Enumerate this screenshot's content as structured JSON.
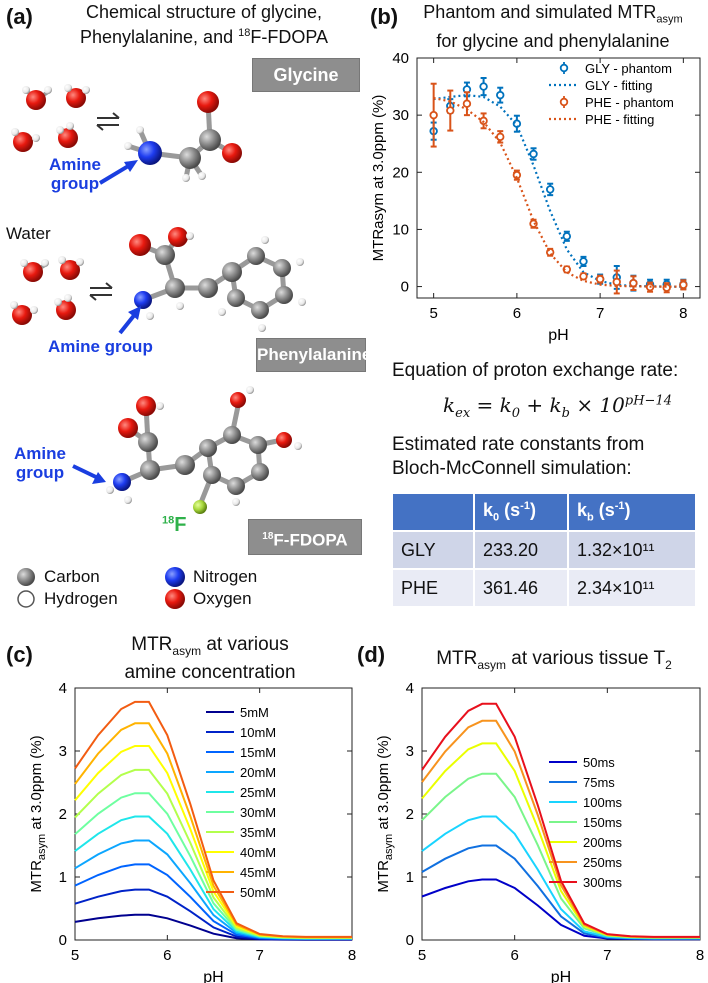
{
  "panel_a": {
    "label": "(a)",
    "title_line1": "Chemical structure of glycine,",
    "title_line2_pre": "Phenylalanine, and ",
    "title_line2_sup": "18",
    "title_line2_post": "F-FDOPA",
    "glycine_label": "Glycine",
    "phenylalanine_label": "Phenylalanine",
    "fdopa_label_sup": "18",
    "fdopa_label_post": "F-FDOPA",
    "amine_group_1_line1": "Amine",
    "amine_group_1_line2": "group",
    "amine_group_2": "Amine group",
    "amine_group_3_line1": "Amine",
    "amine_group_3_line2": "group",
    "water_label": "Water",
    "f18_sup": "18",
    "f18_label": "F",
    "legend": {
      "carbon": "Carbon",
      "hydrogen": "Hydrogen",
      "nitrogen": "Nitrogen",
      "oxygen": "Oxygen"
    },
    "colors": {
      "carbon": "#8a8a8a",
      "hydrogen": "#ffffff",
      "nitrogen": "#1e3cf0",
      "oxygen": "#e8190f",
      "fluorine": "#a6d63a"
    }
  },
  "panel_b": {
    "label": "(b)",
    "title_line1": "Phantom and simulated MTR",
    "title_line1_sub": "asym",
    "title_line2": "for glycine and phenylalanine",
    "equation_title": "Equation of proton exchange rate:",
    "equation": "k_ex = k_0 + k_b × 10^(pH−14)",
    "estimated_line1": "Estimated rate constants from",
    "estimated_line2": "Bloch-McConnell simulation:",
    "table": {
      "header_k0": "k0 (s-1)",
      "header_kb": "kb (s-1)",
      "rows": [
        {
          "name": "GLY",
          "k0": "233.20",
          "kb": "1.32×10¹¹"
        },
        {
          "name": "PHE",
          "k0": "361.46",
          "kb": "2.34×10¹¹"
        }
      ]
    }
  },
  "panel_c": {
    "label": "(c)",
    "title_line1_pre": "MTR",
    "title_line1_sub": "asym",
    "title_line1_post": " at various",
    "title_line2": "amine concentration"
  },
  "panel_d": {
    "label": "(d)",
    "title_pre": "MTR",
    "title_sub": "asym",
    "title_post": " at various tissue T",
    "title_sub2": "2"
  },
  "chart_data": [
    {
      "id": "b",
      "type": "scatter",
      "xlabel": "pH",
      "ylabel": "MTRasym at 3.0ppm (%)",
      "xlim": [
        4.8,
        8.2
      ],
      "ylim": [
        -2,
        40
      ],
      "xticks": [
        5,
        6,
        7,
        8
      ],
      "yticks": [
        0,
        10,
        20,
        30,
        40
      ],
      "series": [
        {
          "name": "GLY - phantom",
          "kind": "errorbar",
          "color": "#0072bd",
          "x": [
            5.0,
            5.2,
            5.4,
            5.6,
            5.8,
            6.0,
            6.2,
            6.4,
            6.6,
            6.8,
            7.0,
            7.2,
            7.4,
            7.6,
            7.8,
            8.0
          ],
          "y": [
            27.2,
            31.6,
            34.5,
            35.0,
            33.5,
            28.5,
            23.2,
            17.0,
            8.8,
            4.4,
            1.3,
            1.6,
            0.6,
            0.4,
            0.4,
            0.4
          ],
          "err": [
            1.5,
            1.2,
            1.2,
            1.5,
            1.3,
            1.4,
            1.0,
            1.0,
            0.8,
            0.8,
            0.8,
            2.0,
            1.3,
            0.8,
            0.8,
            0.8
          ]
        },
        {
          "name": "GLY - fitting",
          "kind": "dotted",
          "color": "#0072bd",
          "x": [
            5.0,
            5.2,
            5.4,
            5.6,
            5.8,
            6.0,
            6.2,
            6.4,
            6.6,
            6.8,
            7.0,
            7.2,
            7.4,
            7.6,
            7.8,
            8.0
          ],
          "y": [
            32.8,
            33.2,
            33.5,
            33.2,
            31.5,
            28.2,
            21.2,
            13.2,
            6.5,
            2.5,
            1.0,
            0.3,
            0.1,
            0.05,
            0,
            0
          ]
        },
        {
          "name": "PHE - phantom",
          "kind": "errorbar",
          "color": "#d95319",
          "x": [
            5.0,
            5.2,
            5.4,
            5.6,
            5.8,
            6.0,
            6.2,
            6.4,
            6.6,
            6.8,
            7.0,
            7.2,
            7.4,
            7.6,
            7.8,
            8.0
          ],
          "y": [
            30.0,
            30.8,
            32.0,
            29.0,
            26.2,
            19.5,
            11.0,
            6.0,
            3.0,
            1.8,
            1.3,
            0.8,
            0.6,
            -0.1,
            -0.2,
            0.3
          ],
          "err": [
            5.5,
            3.5,
            2.0,
            1.3,
            1.0,
            0.8,
            0.7,
            0.6,
            0.5,
            0.5,
            0.6,
            2.0,
            1.2,
            0.8,
            0.8,
            0.8
          ]
        },
        {
          "name": "PHE - fitting",
          "kind": "dotted",
          "color": "#d95319",
          "x": [
            5.0,
            5.2,
            5.4,
            5.6,
            5.8,
            6.0,
            6.2,
            6.4,
            6.6,
            6.8,
            7.0,
            7.2,
            7.4,
            7.6,
            7.8,
            8.0
          ],
          "y": [
            33.0,
            32.4,
            31.0,
            28.8,
            25.2,
            19.0,
            11.5,
            5.8,
            2.5,
            1.0,
            0.35,
            0.1,
            0.05,
            0,
            0,
            0
          ]
        }
      ]
    },
    {
      "id": "c",
      "type": "line",
      "xlabel": "pH",
      "ylabel": "MTRasym at 3.0ppm (%)",
      "xlim": [
        5,
        8
      ],
      "ylim": [
        0,
        4
      ],
      "xticks": [
        5,
        6,
        7,
        8
      ],
      "yticks": [
        0,
        1,
        2,
        3,
        4
      ],
      "x": [
        5.0,
        5.25,
        5.5,
        5.65,
        5.8,
        6.0,
        6.25,
        6.5,
        6.75,
        7.0,
        7.25,
        7.5,
        8.0
      ],
      "shape": [
        0.72,
        0.86,
        0.97,
        1.0,
        1.0,
        0.86,
        0.57,
        0.25,
        0.07,
        0.025,
        0.016,
        0.013,
        0.013
      ],
      "peaks": [
        0.4,
        0.8,
        1.2,
        1.58,
        1.96,
        2.33,
        2.7,
        3.08,
        3.44,
        3.78
      ],
      "series": [
        {
          "name": "5mM",
          "color": "#00008f"
        },
        {
          "name": "10mM",
          "color": "#0023c8"
        },
        {
          "name": "15mM",
          "color": "#0064ff"
        },
        {
          "name": "20mM",
          "color": "#0ca6ff"
        },
        {
          "name": "25mM",
          "color": "#1fe6ea"
        },
        {
          "name": "30mM",
          "color": "#6effa0"
        },
        {
          "name": "35mM",
          "color": "#b3ff4c"
        },
        {
          "name": "40mM",
          "color": "#ffff00"
        },
        {
          "name": "45mM",
          "color": "#ffb300"
        },
        {
          "name": "50mM",
          "color": "#f25c12"
        }
      ]
    },
    {
      "id": "d",
      "type": "line",
      "xlabel": "pH",
      "ylabel": "MTRasym at 3.0ppm (%)",
      "xlim": [
        5,
        8
      ],
      "ylim": [
        0,
        4
      ],
      "xticks": [
        5,
        6,
        7,
        8
      ],
      "yticks": [
        0,
        1,
        2,
        3,
        4
      ],
      "x": [
        5.0,
        5.25,
        5.5,
        5.65,
        5.8,
        6.0,
        6.25,
        6.5,
        6.75,
        7.0,
        7.25,
        7.5,
        8.0
      ],
      "shape": [
        0.72,
        0.86,
        0.97,
        1.0,
        1.0,
        0.86,
        0.57,
        0.25,
        0.07,
        0.025,
        0.016,
        0.013,
        0.013
      ],
      "peaks": [
        0.96,
        1.5,
        1.96,
        2.64,
        3.12,
        3.48,
        3.75
      ],
      "series": [
        {
          "name": "50ms",
          "color": "#0000c8"
        },
        {
          "name": "75ms",
          "color": "#1070e0"
        },
        {
          "name": "100ms",
          "color": "#19d4ff"
        },
        {
          "name": "150ms",
          "color": "#7af58a"
        },
        {
          "name": "200ms",
          "color": "#eaff00"
        },
        {
          "name": "250ms",
          "color": "#f7931e"
        },
        {
          "name": "300ms",
          "color": "#e8101c"
        }
      ]
    }
  ]
}
